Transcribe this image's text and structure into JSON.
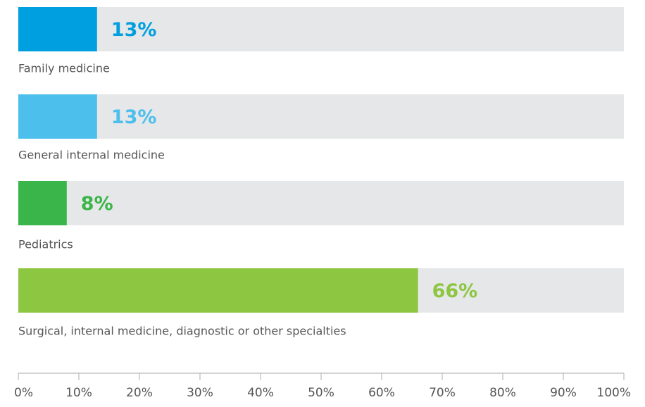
{
  "chart_data": {
    "type": "bar",
    "orientation": "horizontal",
    "categories": [
      "Family medicine",
      "General internal medicine",
      "Pediatrics",
      "Surgical, internal medicine, diagnostic or other specialties"
    ],
    "values": [
      13,
      13,
      8,
      66
    ],
    "value_labels": [
      "13%",
      "13%",
      "8%",
      "66%"
    ],
    "colors": [
      "#009fdf",
      "#4dbfec",
      "#3ab54a",
      "#8dc641"
    ],
    "xlim": [
      0,
      100
    ],
    "xticks": [
      {
        "value": 0,
        "label": "0%"
      },
      {
        "value": 10,
        "label": "10%"
      },
      {
        "value": 20,
        "label": "20%"
      },
      {
        "value": 30,
        "label": "30%"
      },
      {
        "value": 40,
        "label": "40%"
      },
      {
        "value": 50,
        "label": "50%"
      },
      {
        "value": 60,
        "label": "60%"
      },
      {
        "value": 70,
        "label": "70%"
      },
      {
        "value": 80,
        "label": "80%"
      },
      {
        "value": 90,
        "label": "90%"
      },
      {
        "value": 100,
        "label": "100%"
      }
    ]
  }
}
